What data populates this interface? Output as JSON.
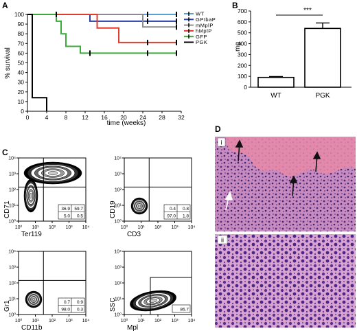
{
  "panels": {
    "A": "A",
    "B": "B",
    "C": "C",
    "D": "D"
  },
  "colors": {
    "WT": "#5aa0d8",
    "GPIbaP": "#2a3f9e",
    "mMplP": "#8c8c8c",
    "hMplP": "#e23b2e",
    "GFP": "#3aaa3a",
    "PGK": "#000000"
  },
  "chart_data": [
    {
      "type": "line",
      "subtype": "kaplan-meier",
      "xlabel": "time (weeks)",
      "ylabel": "% survival",
      "xlim": [
        0,
        32
      ],
      "ylim": [
        0,
        100
      ],
      "xticks": [
        "0",
        "4",
        "8",
        "12",
        "16",
        "20",
        "24",
        "28",
        "32"
      ],
      "yticks": [
        "0",
        "10",
        "20",
        "30",
        "40",
        "50",
        "60",
        "70",
        "80",
        "90",
        "100"
      ],
      "legend_position": "right",
      "series": [
        {
          "name": "WT",
          "color": "#5aa0d8",
          "steps": [
            [
              0,
              100
            ],
            [
              31,
              100
            ]
          ],
          "censored": [
            [
              25,
              100
            ],
            [
              31,
              100
            ]
          ]
        },
        {
          "name": "GPIbaP",
          "color": "#2a3f9e",
          "steps": [
            [
              0,
              100
            ],
            [
              13,
              100
            ],
            [
              13,
              93
            ],
            [
              31,
              93
            ]
          ],
          "censored": [
            [
              25,
              93
            ],
            [
              31,
              93
            ]
          ]
        },
        {
          "name": "mMplP",
          "color": "#8c8c8c",
          "steps": [
            [
              0,
              100
            ],
            [
              24,
              100
            ],
            [
              24,
              87
            ],
            [
              31,
              87
            ]
          ],
          "censored": [
            [
              31,
              87
            ]
          ]
        },
        {
          "name": "hMplP",
          "color": "#e23b2e",
          "steps": [
            [
              0,
              100
            ],
            [
              14.5,
              100
            ],
            [
              14.5,
              86
            ],
            [
              19,
              86
            ],
            [
              19,
              71
            ],
            [
              31,
              71
            ]
          ],
          "censored": [
            [
              25,
              71
            ],
            [
              31,
              71
            ]
          ]
        },
        {
          "name": "GFP",
          "color": "#3aaa3a",
          "steps": [
            [
              0,
              100
            ],
            [
              6,
              100
            ],
            [
              6,
              93
            ],
            [
              7,
              93
            ],
            [
              7,
              80
            ],
            [
              8,
              80
            ],
            [
              8,
              67
            ],
            [
              11,
              67
            ],
            [
              11,
              60
            ],
            [
              31,
              60
            ]
          ],
          "censored": [
            [
              6,
              100
            ],
            [
              13,
              60
            ],
            [
              25,
              60
            ],
            [
              31,
              60
            ]
          ]
        },
        {
          "name": "PGK",
          "color": "#000000",
          "steps": [
            [
              0,
              100
            ],
            [
              1,
              100
            ],
            [
              1,
              14
            ],
            [
              4,
              14
            ],
            [
              4,
              0
            ]
          ],
          "censored": []
        }
      ]
    },
    {
      "type": "bar",
      "ylabel": "mg",
      "categories": [
        "WT",
        "PGK"
      ],
      "values": [
        90,
        540
      ],
      "errors": [
        8,
        50
      ],
      "ylim": [
        0,
        700
      ],
      "yticks": [
        "0",
        "100",
        "200",
        "300",
        "400",
        "500",
        "600",
        "700"
      ],
      "significance": "***"
    }
  ],
  "flow": [
    {
      "x_label": "Ter119",
      "y_label": "CD71",
      "quadrants": [
        "36.9",
        "59.7",
        "5.0",
        "0.5"
      ]
    },
    {
      "x_label": "CD3",
      "y_label": "CD19",
      "quadrants": [
        "0.4",
        "0.8",
        "97.0",
        "1.8"
      ]
    },
    {
      "x_label": "CD11b",
      "y_label": "Gr1",
      "quadrants": [
        "0.7",
        "0.9",
        "98.0",
        "0.3"
      ]
    },
    {
      "x_label": "Mpl",
      "y_label": "SSC",
      "quadrants": [
        "86.7"
      ]
    }
  ],
  "flow_ticks": {
    "x": [
      "10⁰",
      "10¹",
      "10²",
      "10³",
      "10⁴"
    ],
    "y": [
      "10⁰",
      "10¹",
      "10²",
      "10³",
      "10⁴"
    ]
  },
  "histo": {
    "top": "i",
    "bottom": "ii"
  }
}
